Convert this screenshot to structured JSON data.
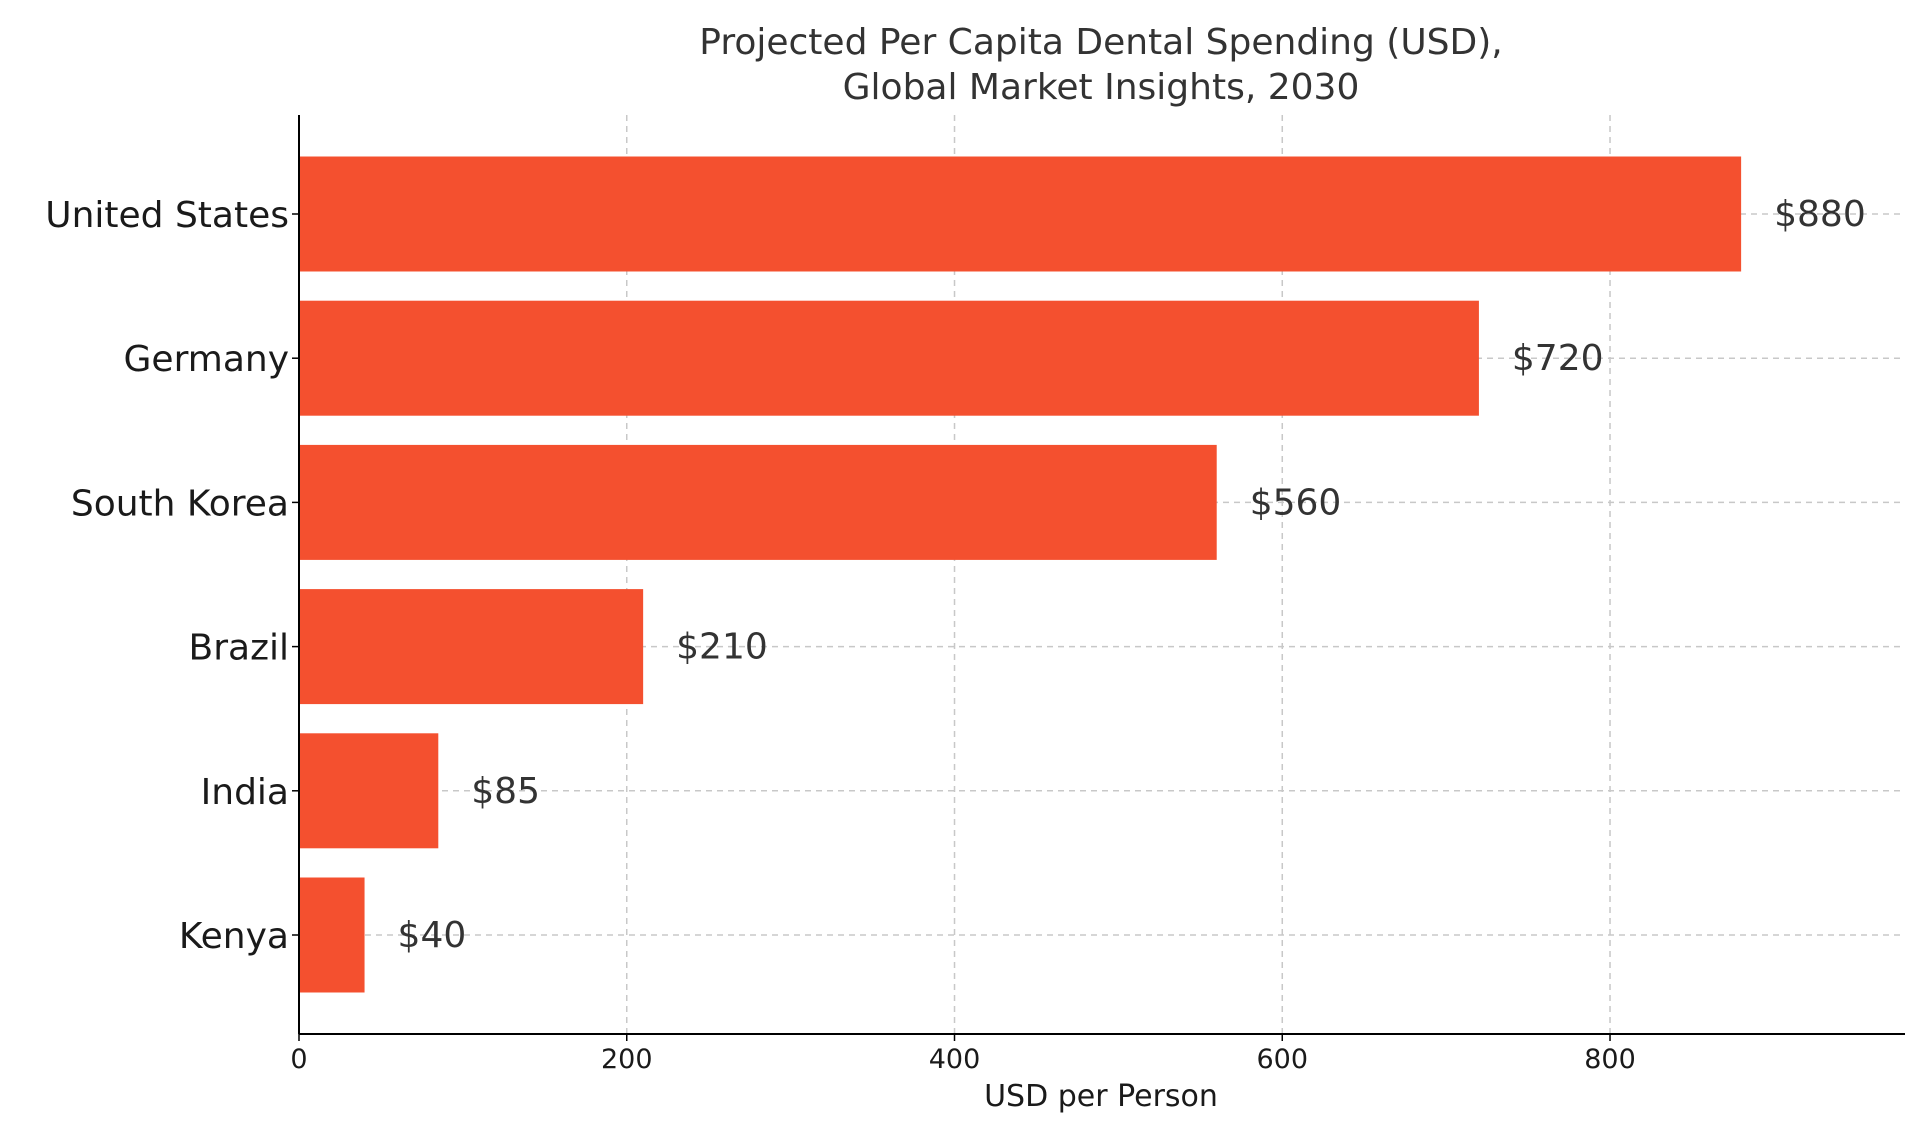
{
  "chart_data": {
    "type": "bar",
    "orientation": "horizontal",
    "title": "Projected Per Capita Dental Spending (USD),\nGlobal Market Insights, 2030",
    "xlabel": "USD per Person",
    "ylabel": "",
    "categories": [
      "United States",
      "Germany",
      "South Korea",
      "Brazil",
      "India",
      "Kenya"
    ],
    "values": [
      880,
      720,
      560,
      210,
      85,
      40
    ],
    "value_labels": [
      "$880",
      "$720",
      "$560",
      "$210",
      "$85",
      "$40"
    ],
    "xlim": [
      0,
      980
    ],
    "xticks": [
      0,
      200,
      400,
      600,
      800
    ],
    "grid": true,
    "bar_color": "#f4502f"
  }
}
